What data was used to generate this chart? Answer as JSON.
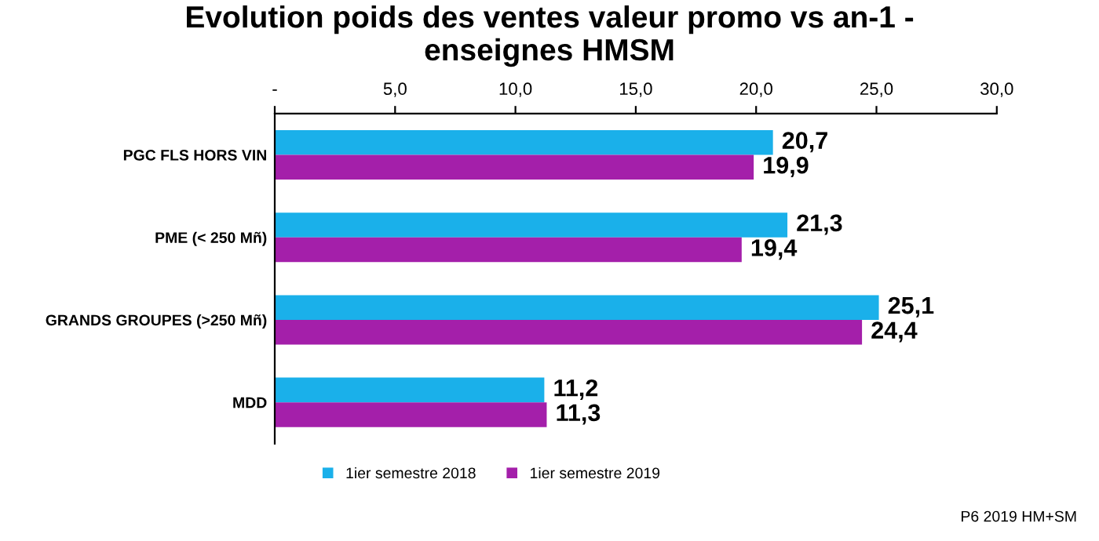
{
  "chart_data": {
    "type": "bar",
    "orientation": "horizontal",
    "title": "Evolution poids des ventes valeur promo vs an-1 -\nenseignes HMSM",
    "categories": [
      "PGC FLS HORS VIN",
      "PME (< 250 Mñ)",
      "GRANDS GROUPES (>250 Mñ)",
      "MDD"
    ],
    "series": [
      {
        "name": "1ier semestre 2018",
        "color": "#1ab0ea",
        "values": [
          20.7,
          21.3,
          25.1,
          11.2
        ],
        "value_labels": [
          "20,7",
          "21,3",
          "25,1",
          "11,2"
        ]
      },
      {
        "name": "1ier semestre 2019",
        "color": "#a41faa",
        "values": [
          19.9,
          19.4,
          24.4,
          11.3
        ],
        "value_labels": [
          "19,9",
          "19,4",
          "24,4",
          "11,3"
        ]
      }
    ],
    "xlim": [
      0,
      30
    ],
    "xticks": [
      {
        "value": 0,
        "label": "-"
      },
      {
        "value": 5,
        "label": "5,0"
      },
      {
        "value": 10,
        "label": "10,0"
      },
      {
        "value": 15,
        "label": "15,0"
      },
      {
        "value": 20,
        "label": "20,0"
      },
      {
        "value": 25,
        "label": "25,0"
      },
      {
        "value": 30,
        "label": "30,0"
      }
    ],
    "legend": "bottom",
    "grid": false,
    "annotations": [
      "P6 2019 HM+SM"
    ]
  }
}
